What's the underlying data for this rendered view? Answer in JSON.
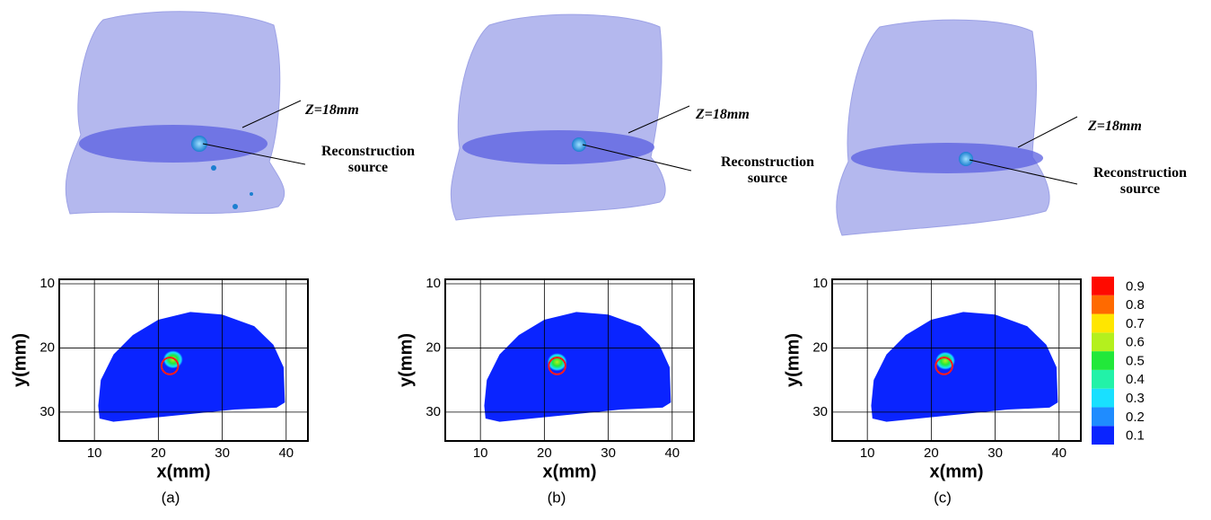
{
  "chart_data": [
    {
      "type": "contour",
      "panel_label": "(a)",
      "annotations": [
        "Z=18mm",
        "Reconstruction source"
      ],
      "xlabel": "x(mm)",
      "ylabel": "y(mm)",
      "xlim": [
        4.5,
        43.4
      ],
      "ylim": [
        9.3,
        34.5
      ],
      "y_reversed": true,
      "xticks": [
        10,
        20,
        30,
        40
      ],
      "yticks": [
        10,
        20,
        30
      ],
      "grid": true,
      "peak": {
        "x": 22.3,
        "y": 21.8,
        "value": 0.6
      },
      "source_circle": {
        "x": 21.8,
        "y": 22.8,
        "r": 1.3
      }
    },
    {
      "type": "contour",
      "panel_label": "(b)",
      "annotations": [
        "Z=18mm",
        "Reconstruction source"
      ],
      "xlabel": "x(mm)",
      "ylabel": "y(mm)",
      "xlim": [
        4.5,
        43.4
      ],
      "ylim": [
        9.3,
        34.5
      ],
      "y_reversed": true,
      "xticks": [
        10,
        20,
        30,
        40
      ],
      "yticks": [
        10,
        20,
        30
      ],
      "grid": true,
      "peak": {
        "x": 22.0,
        "y": 22.2,
        "value": 0.6
      },
      "source_circle": {
        "x": 22.0,
        "y": 22.8,
        "r": 1.3
      }
    },
    {
      "type": "contour",
      "panel_label": "(c)",
      "annotations": [
        "Z=18mm",
        "Reconstruction source"
      ],
      "xlabel": "x(mm)",
      "ylabel": "y(mm)",
      "xlim": [
        4.5,
        43.4
      ],
      "ylim": [
        9.3,
        34.5
      ],
      "y_reversed": true,
      "xticks": [
        10,
        20,
        30,
        40
      ],
      "yticks": [
        10,
        20,
        30
      ],
      "grid": true,
      "peak": {
        "x": 22.2,
        "y": 22.0,
        "value": 0.6
      },
      "source_circle": {
        "x": 22.0,
        "y": 22.8,
        "r": 1.3
      },
      "colorbar": {
        "levels": [
          0.1,
          0.2,
          0.3,
          0.4,
          0.5,
          0.6,
          0.7,
          0.8,
          0.9
        ],
        "colors": [
          "#0a24ff",
          "#1f8cff",
          "#19e0ff",
          "#22f2a8",
          "#22e83a",
          "#b4f01e",
          "#ffe600",
          "#ff6a00",
          "#ff0a00"
        ]
      }
    }
  ]
}
